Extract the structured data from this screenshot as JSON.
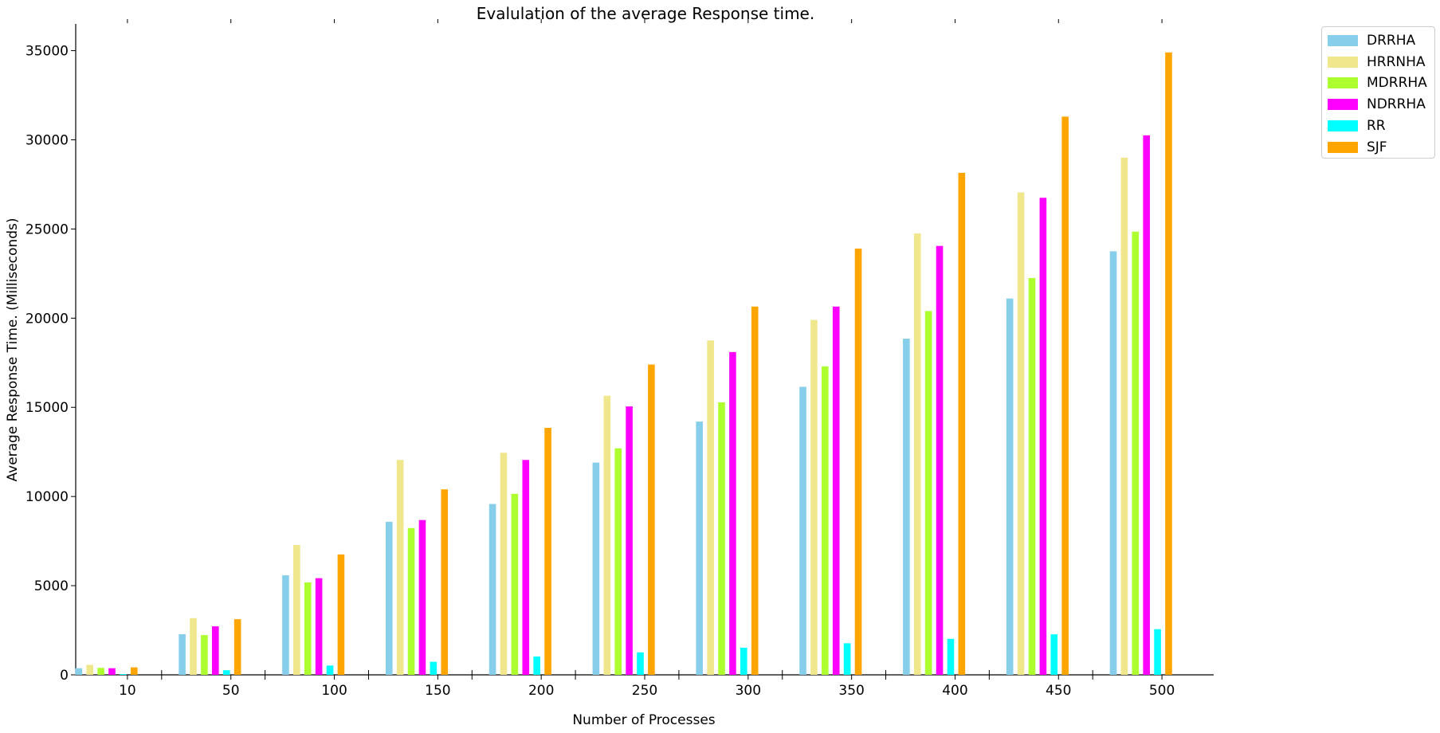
{
  "chart_data": {
    "type": "bar",
    "title": "Evalulation of the average Response time.",
    "xlabel": "Number of Processes",
    "ylabel": "Average Response Time. (Milliseconds)",
    "categories": [
      "10",
      "50",
      "100",
      "150",
      "200",
      "250",
      "300",
      "350",
      "400",
      "450",
      "500"
    ],
    "ylim": [
      0,
      36500
    ],
    "yticks": [
      0,
      5000,
      10000,
      15000,
      20000,
      25000,
      30000,
      35000
    ],
    "grid": false,
    "legend_position": "outside top-right",
    "series": [
      {
        "name": "DRRHA",
        "color": "#87ceeb",
        "values": [
          370,
          2280,
          5580,
          8580,
          9580,
          11900,
          14200,
          16150,
          18850,
          21100,
          23750
        ]
      },
      {
        "name": "HRRNHA",
        "color": "#f0e68c",
        "values": [
          560,
          3180,
          7280,
          12050,
          12450,
          15650,
          18750,
          19900,
          24750,
          27050,
          29000
        ]
      },
      {
        "name": "MDRRHA",
        "color": "#adff2f",
        "values": [
          390,
          2230,
          5180,
          8230,
          10150,
          12700,
          15280,
          17300,
          20400,
          22250,
          24850
        ]
      },
      {
        "name": "NDRRHA",
        "color": "#ff00ff",
        "values": [
          370,
          2720,
          5420,
          8680,
          12050,
          15050,
          18100,
          20650,
          24050,
          26750,
          30250
        ]
      },
      {
        "name": "RR",
        "color": "#00ffff",
        "values": [
          40,
          260,
          520,
          730,
          1030,
          1260,
          1520,
          1770,
          2020,
          2270,
          2560
        ]
      },
      {
        "name": "SJF",
        "color": "#ffa500",
        "values": [
          420,
          3120,
          6750,
          10400,
          13850,
          17400,
          20650,
          23900,
          28150,
          31300,
          34900
        ]
      }
    ]
  }
}
